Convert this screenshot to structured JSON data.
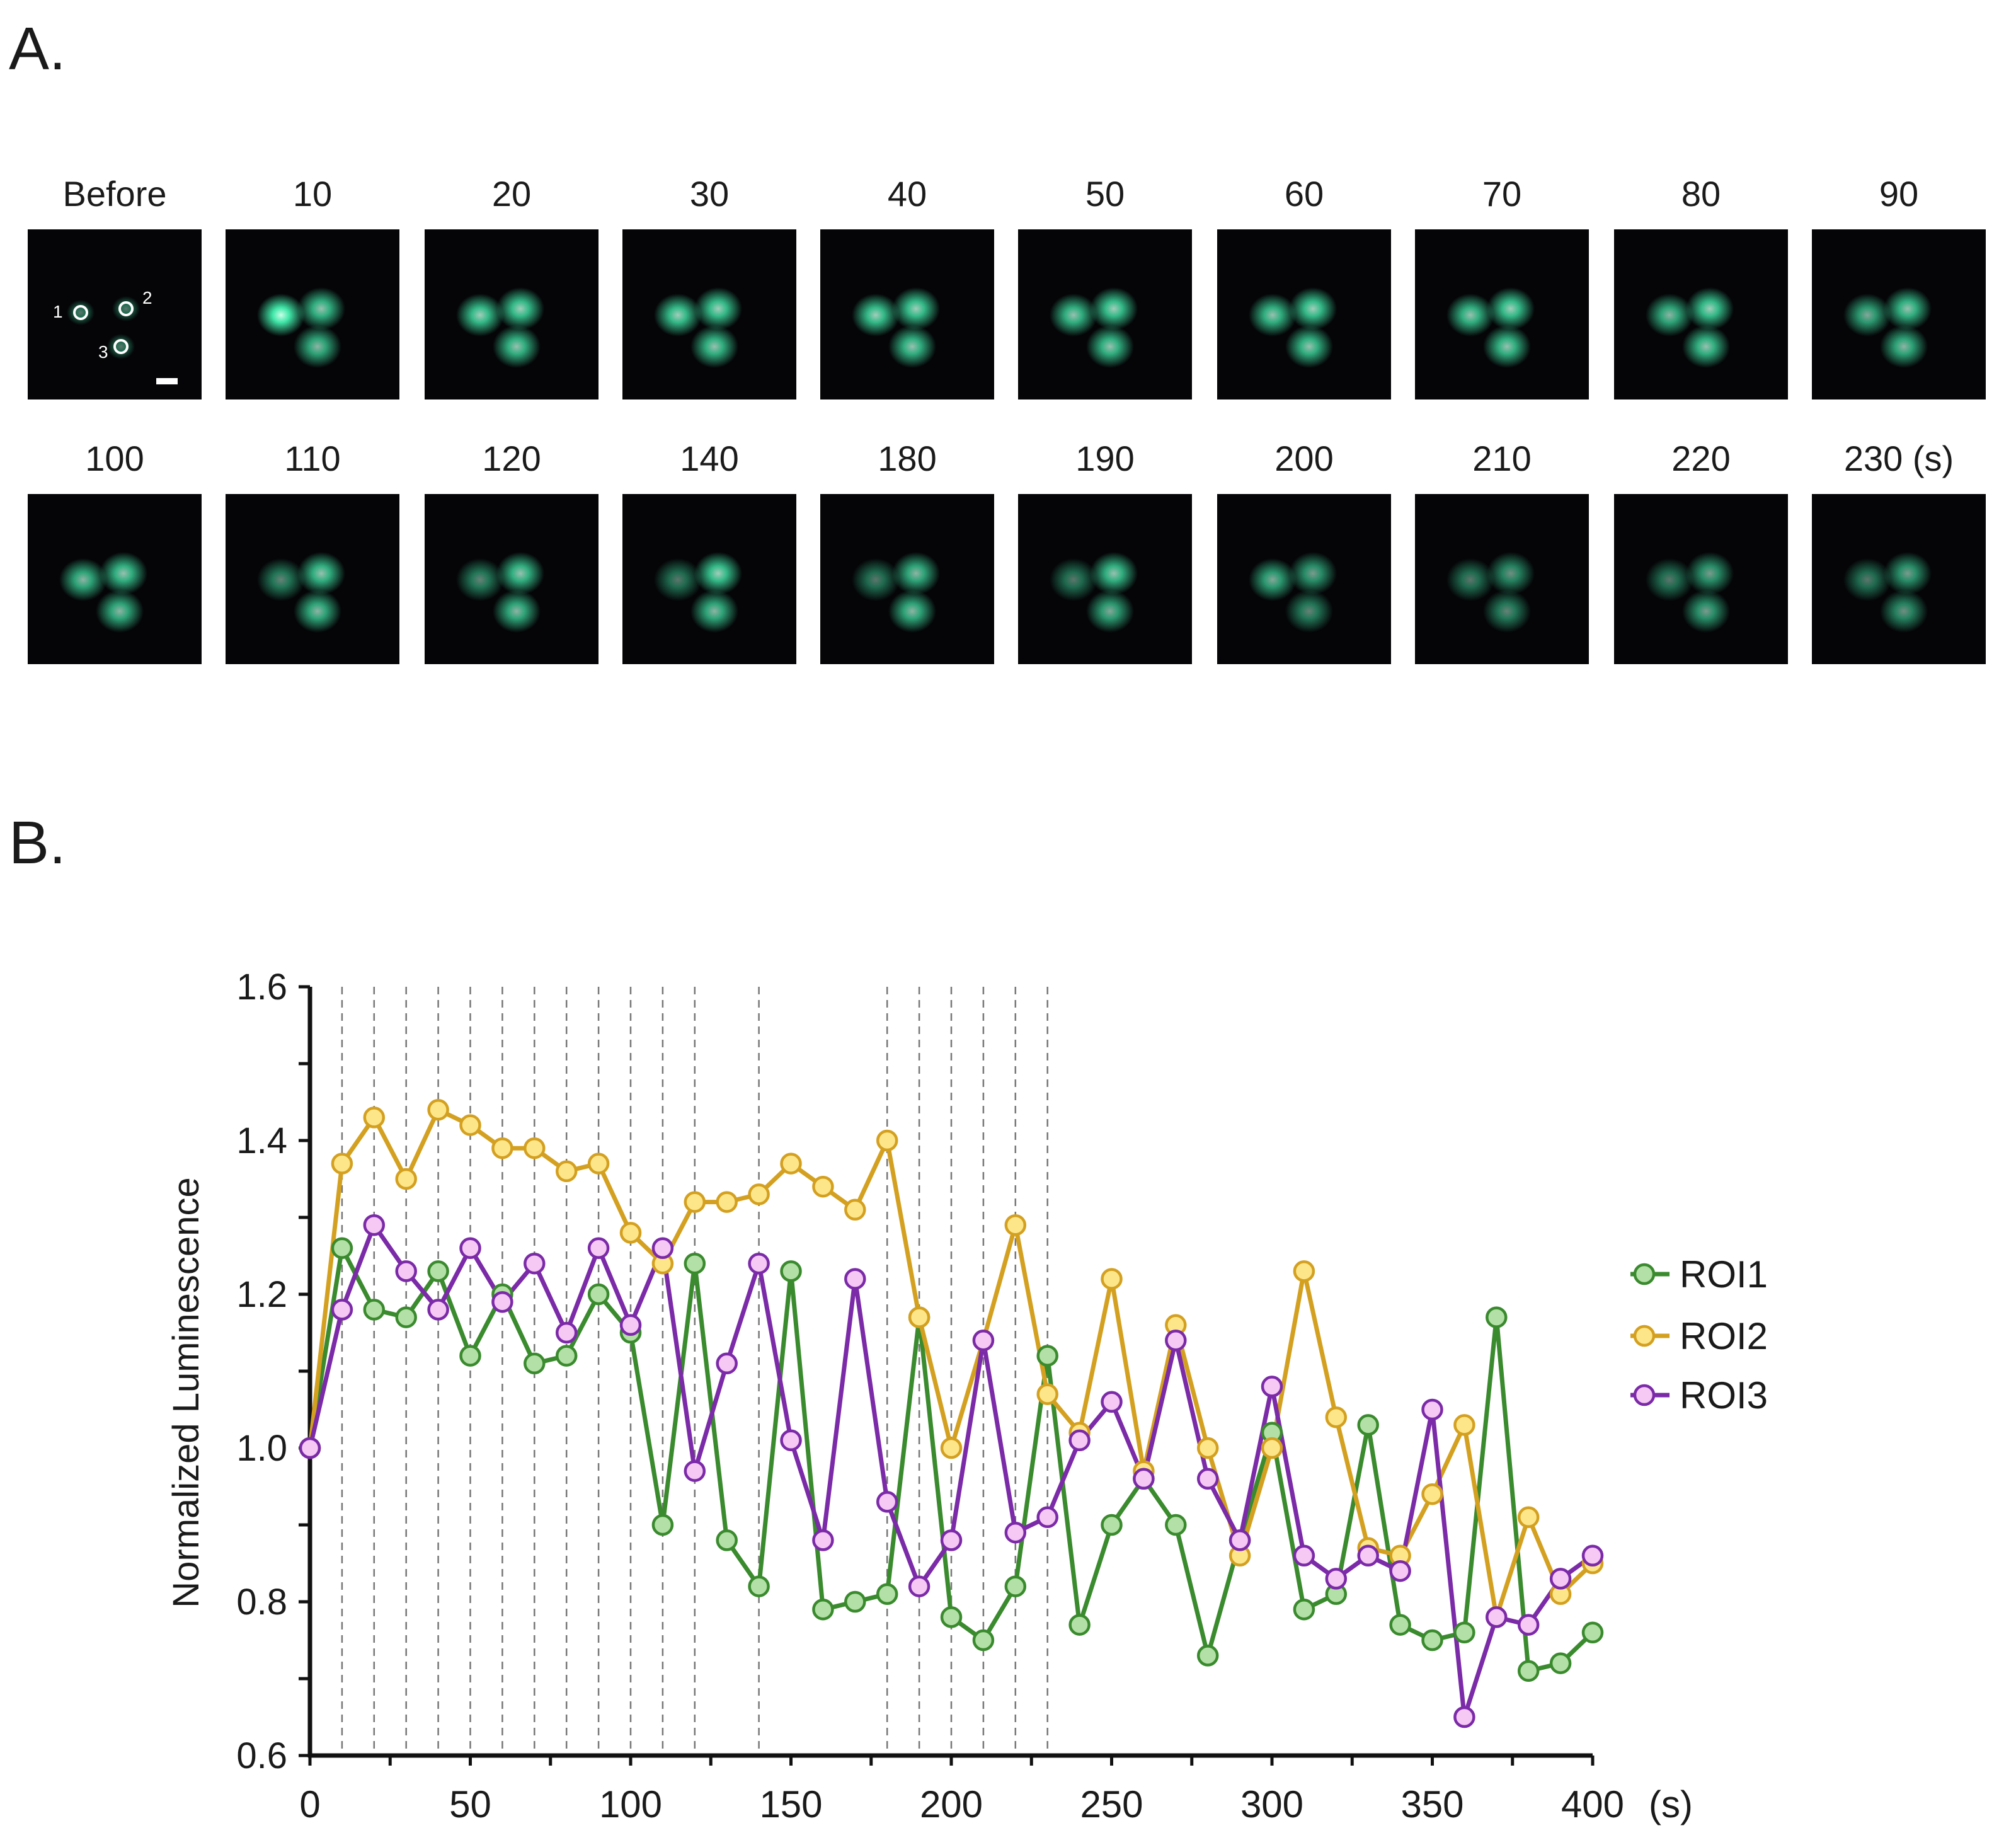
{
  "panels": {
    "a": "A.",
    "b": "B."
  },
  "frames_row1": [
    {
      "label": "Before",
      "c1": 0.35,
      "c2": 0.35,
      "c3": 0.35,
      "annot": true
    },
    {
      "label": "10",
      "c1": 1.0,
      "c2": 0.75,
      "c3": 0.7
    },
    {
      "label": "20",
      "c1": 0.8,
      "c2": 0.8,
      "c3": 0.75
    },
    {
      "label": "30",
      "c1": 0.8,
      "c2": 0.8,
      "c3": 0.75
    },
    {
      "label": "40",
      "c1": 0.8,
      "c2": 0.8,
      "c3": 0.75
    },
    {
      "label": "50",
      "c1": 0.75,
      "c2": 0.8,
      "c3": 0.75
    },
    {
      "label": "60",
      "c1": 0.75,
      "c2": 0.8,
      "c3": 0.75
    },
    {
      "label": "70",
      "c1": 0.75,
      "c2": 0.8,
      "c3": 0.75
    },
    {
      "label": "80",
      "c1": 0.7,
      "c2": 0.8,
      "c3": 0.75
    },
    {
      "label": "90",
      "c1": 0.65,
      "c2": 0.75,
      "c3": 0.7
    }
  ],
  "frames_row2": [
    {
      "label": "100",
      "c1": 0.7,
      "c2": 0.75,
      "c3": 0.7
    },
    {
      "label": "110",
      "c1": 0.5,
      "c2": 0.75,
      "c3": 0.7
    },
    {
      "label": "120",
      "c1": 0.5,
      "c2": 0.75,
      "c3": 0.7
    },
    {
      "label": "140",
      "c1": 0.45,
      "c2": 0.8,
      "c3": 0.7
    },
    {
      "label": "180",
      "c1": 0.45,
      "c2": 0.7,
      "c3": 0.7
    },
    {
      "label": "190",
      "c1": 0.45,
      "c2": 0.75,
      "c3": 0.65
    },
    {
      "label": "200",
      "c1": 0.65,
      "c2": 0.6,
      "c3": 0.5
    },
    {
      "label": "210",
      "c1": 0.45,
      "c2": 0.55,
      "c3": 0.5
    },
    {
      "label": "220",
      "c1": 0.45,
      "c2": 0.6,
      "c3": 0.6
    },
    {
      "label": "230 (s)",
      "c1": 0.45,
      "c2": 0.6,
      "c3": 0.55
    }
  ],
  "annotations": {
    "roi_numbers": [
      "1",
      "2",
      "3"
    ]
  },
  "colors": {
    "roi1_line": "#3a8a2e",
    "roi1_fill": "#b3e0a6",
    "roi1_stroke": "#3a8a2e",
    "roi2_line": "#d4a020",
    "roi2_fill": "#fde68a",
    "roi2_stroke": "#d4a020",
    "roi3_line": "#7b2aa8",
    "roi3_fill": "#f6c8f4",
    "roi3_stroke": "#7b2aa8",
    "cell": "#40e6a8"
  },
  "chart_data": {
    "type": "line",
    "title": "",
    "xlabel": "(s)",
    "ylabel": "Normalized Luminescence",
    "xlim": [
      0,
      400
    ],
    "ylim": [
      0.6,
      1.6
    ],
    "x_ticks": [
      "0",
      "50",
      "100",
      "150",
      "200",
      "250",
      "300",
      "350",
      "400"
    ],
    "y_ticks": [
      "0.6",
      "0.8",
      "1.0",
      "1.2",
      "1.4",
      "1.6"
    ],
    "x_tick_values": [
      0,
      50,
      100,
      150,
      200,
      250,
      300,
      350,
      400
    ],
    "y_tick_values": [
      0.6,
      0.8,
      1.0,
      1.2,
      1.4,
      1.6
    ],
    "dashed_lines_at": [
      10,
      20,
      30,
      40,
      50,
      60,
      70,
      80,
      90,
      100,
      110,
      120,
      140,
      180,
      190,
      200,
      210,
      220,
      230
    ],
    "legend_position": "right",
    "x": [
      0,
      10,
      20,
      30,
      40,
      50,
      60,
      70,
      80,
      90,
      100,
      110,
      120,
      130,
      140,
      150,
      160,
      170,
      180,
      190,
      200,
      210,
      220,
      230,
      240,
      250,
      260,
      270,
      280,
      290,
      300,
      310,
      320,
      330,
      340,
      350,
      360,
      370,
      380,
      390,
      400
    ],
    "series": [
      {
        "name": "ROI1",
        "values": [
          1.0,
          1.26,
          1.18,
          1.17,
          1.23,
          1.12,
          1.2,
          1.11,
          1.12,
          1.2,
          1.15,
          0.9,
          1.24,
          0.88,
          0.82,
          1.23,
          0.79,
          0.8,
          0.81,
          1.17,
          0.78,
          0.75,
          0.82,
          1.12,
          0.77,
          0.9,
          0.96,
          0.9,
          0.73,
          0.88,
          1.02,
          0.79,
          0.81,
          1.03,
          0.77,
          0.75,
          0.76,
          1.17,
          0.71,
          0.72,
          0.76
        ]
      },
      {
        "name": "ROI2",
        "values": [
          1.0,
          1.37,
          1.43,
          1.35,
          1.44,
          1.42,
          1.39,
          1.39,
          1.36,
          1.37,
          1.28,
          1.24,
          1.32,
          1.32,
          1.33,
          1.37,
          1.34,
          1.31,
          1.4,
          1.17,
          1.0,
          1.14,
          1.29,
          1.07,
          1.02,
          1.22,
          0.97,
          1.16,
          1.0,
          0.86,
          1.0,
          1.23,
          1.04,
          0.87,
          0.86,
          0.94,
          1.03,
          0.78,
          0.91,
          0.81,
          0.85
        ]
      },
      {
        "name": "ROI3",
        "values": [
          1.0,
          1.18,
          1.29,
          1.23,
          1.18,
          1.26,
          1.19,
          1.24,
          1.15,
          1.26,
          1.16,
          1.26,
          0.97,
          1.11,
          1.24,
          1.01,
          0.88,
          1.22,
          0.93,
          0.82,
          0.88,
          1.14,
          0.89,
          0.91,
          1.01,
          1.06,
          0.96,
          1.14,
          0.96,
          0.88,
          1.08,
          0.86,
          0.83,
          0.86,
          0.84,
          1.05,
          0.65,
          0.78,
          0.77,
          0.83,
          0.86
        ]
      }
    ]
  }
}
